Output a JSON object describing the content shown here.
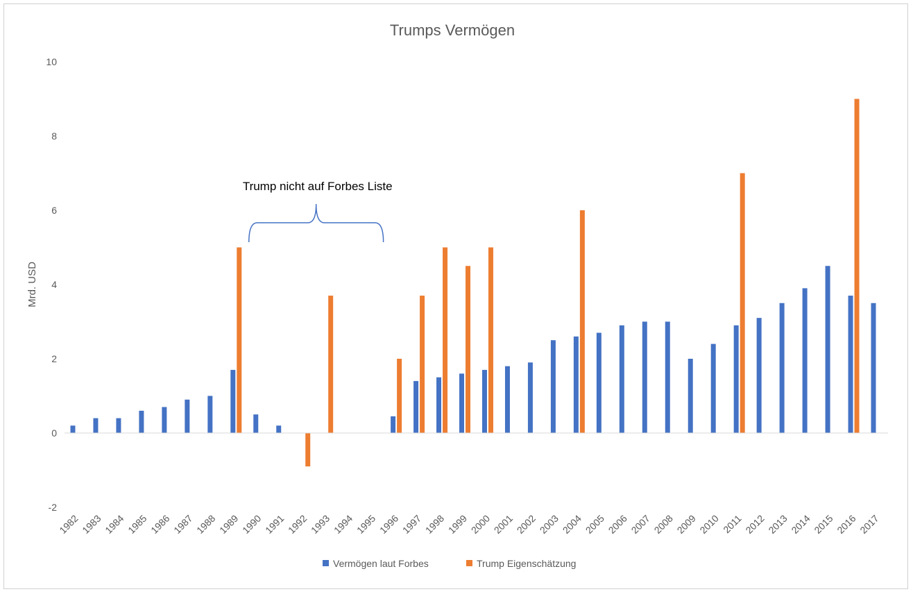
{
  "chart_data": {
    "type": "bar",
    "title": "Trumps Vermögen",
    "xlabel": "",
    "ylabel": "Mrd. USD",
    "ylim": [
      -2,
      10
    ],
    "yticks": [
      -2,
      0,
      2,
      4,
      6,
      8,
      10
    ],
    "grid": false,
    "legend_position": "bottom",
    "categories": [
      "1982",
      "1983",
      "1984",
      "1985",
      "1986",
      "1987",
      "1988",
      "1989",
      "1990",
      "1991",
      "1992",
      "1993",
      "1994",
      "1995",
      "1996",
      "1997",
      "1998",
      "1999",
      "2000",
      "2001",
      "2002",
      "2003",
      "2004",
      "2005",
      "2006",
      "2007",
      "2008",
      "2009",
      "2010",
      "2011",
      "2012",
      "2013",
      "2014",
      "2015",
      "2016",
      "2017"
    ],
    "series": [
      {
        "name": "Vermögen laut Forbes",
        "color": "#4472C4",
        "values": [
          0.2,
          0.4,
          0.4,
          0.6,
          0.7,
          0.9,
          1.0,
          1.7,
          0.5,
          0.2,
          null,
          null,
          null,
          null,
          0.45,
          1.4,
          1.5,
          1.6,
          1.7,
          1.8,
          1.9,
          2.5,
          2.6,
          2.7,
          2.9,
          3.0,
          3.0,
          2.0,
          2.4,
          2.9,
          3.1,
          3.5,
          3.9,
          4.5,
          3.7,
          3.5
        ]
      },
      {
        "name": "Trump Eigenschätzung",
        "color": "#ED7D31",
        "values": [
          null,
          null,
          null,
          null,
          null,
          null,
          null,
          5.0,
          null,
          null,
          -0.9,
          3.7,
          null,
          null,
          2.0,
          3.7,
          5.0,
          4.5,
          5.0,
          null,
          null,
          null,
          6.0,
          null,
          null,
          null,
          null,
          null,
          null,
          7.0,
          null,
          null,
          null,
          null,
          9.0,
          null
        ]
      }
    ],
    "annotation": {
      "text": "Trump nicht auf Forbes Liste",
      "from_category": "1990",
      "to_category": "1995"
    }
  }
}
